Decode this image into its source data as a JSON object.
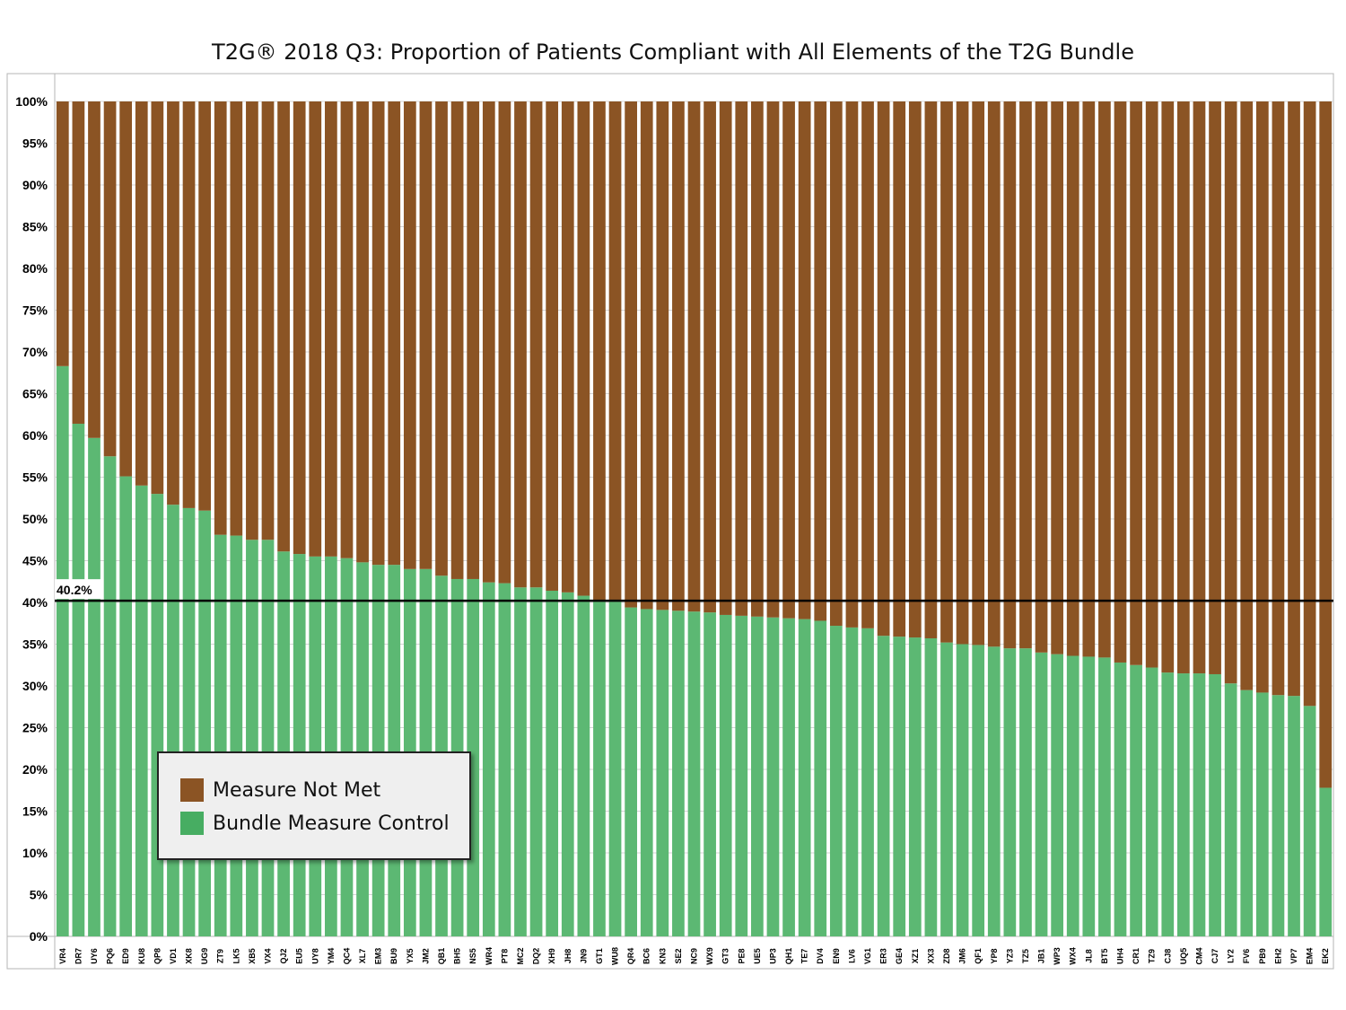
{
  "chart_data": {
    "type": "bar",
    "stacked": true,
    "normalized": true,
    "title": "T2G® 2018 Q3: Proportion of Patients Compliant with All Elements of the T2G Bundle",
    "categories": [
      "VR4",
      "DR7",
      "UY6",
      "PQ6",
      "ED9",
      "KU8",
      "QP8",
      "VD1",
      "XK8",
      "UG9",
      "ZT9",
      "LK5",
      "XB5",
      "VX4",
      "QJ2",
      "EU5",
      "UY8",
      "YM4",
      "QC4",
      "XL7",
      "EM3",
      "BU9",
      "YX5",
      "JM2",
      "QB1",
      "BH5",
      "NS5",
      "WR4",
      "PT8",
      "MC2",
      "DQ2",
      "XH9",
      "JH8",
      "JN9",
      "GT1",
      "WU8",
      "QR4",
      "BC6",
      "KN3",
      "SE2",
      "NC9",
      "WX9",
      "GT3",
      "PE8",
      "UE5",
      "UP3",
      "QH1",
      "TE7",
      "DV4",
      "EN9",
      "LV6",
      "VG1",
      "ER3",
      "GE4",
      "XZ1",
      "XX3",
      "ZD8",
      "JM6",
      "QF1",
      "YP8",
      "YZ3",
      "TZ5",
      "JB1",
      "WP3",
      "WX4",
      "JL8",
      "BT5",
      "UH4",
      "CR1",
      "TZ9",
      "CJ8",
      "UQ5",
      "CM4",
      "CJ7",
      "LY2",
      "FV6",
      "PB9",
      "EH2",
      "VP7",
      "EM4",
      "EK2"
    ],
    "series": [
      {
        "name": "Bundle Measure Control",
        "color": "#5cb873",
        "values": [
          68.3,
          61.4,
          59.7,
          57.5,
          55.1,
          54.0,
          53.0,
          51.7,
          51.3,
          51.0,
          48.1,
          48.0,
          47.5,
          47.5,
          46.1,
          45.8,
          45.5,
          45.5,
          45.3,
          44.8,
          44.5,
          44.5,
          44.0,
          44.0,
          43.2,
          42.8,
          42.8,
          42.4,
          42.3,
          41.8,
          41.8,
          41.4,
          41.2,
          40.8,
          40.1,
          40.1,
          39.4,
          39.2,
          39.1,
          39.0,
          38.9,
          38.8,
          38.5,
          38.4,
          38.3,
          38.2,
          38.1,
          38.0,
          37.8,
          37.2,
          37.0,
          36.9,
          36.0,
          35.9,
          35.8,
          35.7,
          35.2,
          35.0,
          34.9,
          34.7,
          34.5,
          34.5,
          34.0,
          33.8,
          33.6,
          33.5,
          33.4,
          32.8,
          32.5,
          32.2,
          31.6,
          31.5,
          31.5,
          31.4,
          30.3,
          29.5,
          29.2,
          28.9,
          28.8,
          27.6,
          17.8
        ]
      },
      {
        "name": "Measure Not Met",
        "color": "#8b5424",
        "values": [
          31.7,
          38.6,
          40.3,
          42.5,
          44.9,
          46.0,
          47.0,
          48.3,
          48.7,
          49.0,
          51.9,
          52.0,
          52.5,
          52.5,
          53.9,
          54.2,
          54.5,
          54.5,
          54.7,
          55.2,
          55.5,
          55.5,
          56.0,
          56.0,
          56.8,
          57.2,
          57.2,
          57.6,
          57.7,
          58.2,
          58.2,
          58.6,
          58.8,
          59.2,
          59.9,
          59.9,
          60.6,
          60.8,
          60.9,
          61.0,
          61.1,
          61.2,
          61.5,
          61.6,
          61.7,
          61.8,
          61.9,
          62.0,
          62.2,
          62.8,
          63.0,
          63.1,
          64.0,
          64.1,
          64.2,
          64.3,
          64.8,
          65.0,
          65.1,
          65.3,
          65.5,
          65.5,
          66.0,
          66.2,
          66.4,
          66.5,
          66.6,
          67.2,
          67.5,
          67.8,
          68.4,
          68.5,
          68.5,
          68.6,
          69.7,
          70.5,
          70.8,
          71.1,
          71.2,
          72.4,
          82.2
        ]
      }
    ],
    "reference_line": {
      "value": 40.2,
      "label": "40.2%"
    },
    "yticks": [
      "0%",
      "5%",
      "10%",
      "15%",
      "20%",
      "25%",
      "30%",
      "35%",
      "40%",
      "45%",
      "50%",
      "55%",
      "60%",
      "65%",
      "70%",
      "75%",
      "80%",
      "85%",
      "90%",
      "95%",
      "100%"
    ],
    "ylim": [
      0,
      100
    ],
    "grid": true,
    "legend": {
      "position": "bottom-left",
      "entries": [
        {
          "label": "Measure Not Met",
          "color": "#8b5424"
        },
        {
          "label": "Bundle Measure Control",
          "color": "#5cb873"
        }
      ]
    }
  }
}
